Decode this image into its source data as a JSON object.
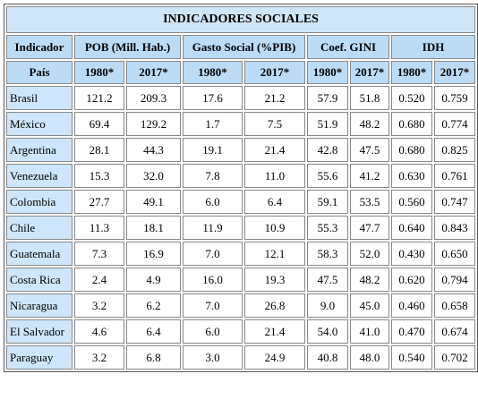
{
  "title": "INDICADORES SOCIALES",
  "headers": [
    "Indicador",
    "POB (Mill. Hab.)",
    "Gasto Social (%PIB)",
    "Coef. GINI",
    "IDH"
  ],
  "subheaders": [
    "País",
    "1980*",
    "2017*",
    "1980*",
    "2017*",
    "1980*",
    "2017*",
    "1980*",
    "2017*"
  ],
  "rows": [
    [
      "Brasil",
      "121.2",
      "209.3",
      "17.6",
      "21.2",
      "57.9",
      "51.8",
      "0.520",
      "0.759"
    ],
    [
      "México",
      "69.4",
      "129.2",
      "1.7",
      "7.5",
      "51.9",
      "48.2",
      "0.680",
      "0.774"
    ],
    [
      "Argentina",
      "28.1",
      "44.3",
      "19.1",
      "21.4",
      "42.8",
      "47.5",
      "0.680",
      "0.825"
    ],
    [
      "Venezuela",
      "15.3",
      "32.0",
      "7.8",
      "11.0",
      "55.6",
      "41.2",
      "0.630",
      "0.761"
    ],
    [
      "Colombia",
      "27.7",
      "49.1",
      "6.0",
      "6.4",
      "59.1",
      "53.5",
      "0.560",
      "0.747"
    ],
    [
      "Chile",
      "11.3",
      "18.1",
      "11.9",
      "10.9",
      "55.3",
      "47.7",
      "0.640",
      "0.843"
    ],
    [
      "Guatemala",
      "7.3",
      "16.9",
      "7.0",
      "12.1",
      "58.3",
      "52.0",
      "0.430",
      "0.650"
    ],
    [
      "Costa Rica",
      "2.4",
      "4.9",
      "16.0",
      "19.3",
      "47.5",
      "48.2",
      "0.620",
      "0.794"
    ],
    [
      "Nicaragua",
      "3.2",
      "6.2",
      "7.0",
      "26.8",
      "9.0",
      "45.0",
      "0.460",
      "0.658"
    ],
    [
      "El Salvador",
      "4.6",
      "6.4",
      "6.0",
      "21.4",
      "54.0",
      "41.0",
      "0.470",
      "0.674"
    ],
    [
      "Paraguay",
      "3.2",
      "6.8",
      "3.0",
      "24.9",
      "40.8",
      "48.0",
      "0.540",
      "0.702"
    ]
  ]
}
